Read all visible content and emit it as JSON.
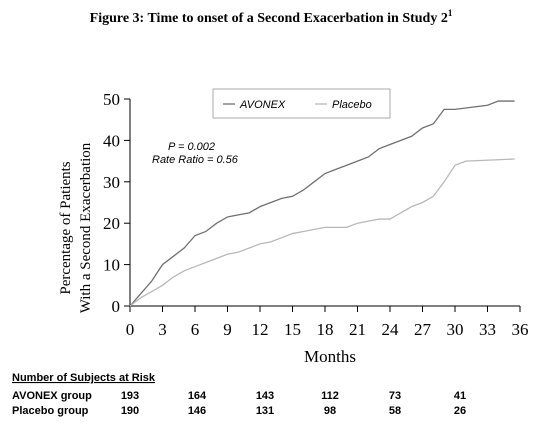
{
  "chart_data": {
    "type": "line",
    "title": "Figure 3: Time to onset of a Second Exacerbation in Study 2",
    "title_note": "1",
    "y_label": [
      "Percentage of Patients",
      "With a Second Exacerbation"
    ],
    "x_label": "Months",
    "annotations": [
      "P = 0.002",
      "Rate Ratio = 0.56"
    ],
    "xlim": [
      0,
      36
    ],
    "xticks": [
      0,
      3,
      6,
      9,
      12,
      15,
      18,
      21,
      24,
      27,
      30,
      33,
      36
    ],
    "ylim": [
      0,
      50
    ],
    "yticks": [
      0,
      10,
      20,
      30,
      40,
      50
    ],
    "grid": false,
    "legend": "top",
    "series": [
      {
        "name": "AVONEX",
        "color": "#707070",
        "x": [
          0,
          1,
          2,
          3,
          4,
          5,
          6,
          7,
          8,
          9,
          10,
          11,
          12,
          13,
          14,
          15,
          16,
          17,
          18,
          19,
          20,
          21,
          22,
          23,
          24,
          25,
          26,
          27,
          28,
          29,
          30,
          33,
          34,
          35.5
        ],
        "values": [
          0,
          3,
          6,
          10,
          12,
          14,
          17,
          18,
          20,
          21.5,
          22,
          22.5,
          24,
          25,
          26,
          26.5,
          28,
          30,
          32,
          33,
          34,
          35,
          36,
          38,
          39,
          40,
          41,
          43,
          44,
          47.5,
          47.5,
          48.5,
          49.5,
          49.5
        ]
      },
      {
        "name": "Placebo",
        "color": "#b8b8b8",
        "x": [
          0,
          1,
          2,
          3,
          4,
          5,
          6,
          7,
          8,
          9,
          10,
          11,
          12,
          13,
          14,
          15,
          16,
          17,
          18,
          19,
          20,
          21,
          22,
          23,
          24,
          25,
          26,
          27,
          28,
          29,
          30,
          31,
          35.5
        ],
        "values": [
          0,
          2,
          3.5,
          5,
          7,
          8.5,
          9.5,
          10.5,
          11.5,
          12.5,
          13,
          14,
          15,
          15.5,
          16.5,
          17.5,
          18,
          18.5,
          19,
          19,
          19,
          20,
          20.5,
          21,
          21,
          22.5,
          24,
          25,
          26.5,
          30,
          34,
          35,
          35.5
        ]
      }
    ]
  },
  "risk_table": {
    "title": "Number of Subjects at Risk",
    "rows": [
      {
        "label": "AVONEX group",
        "values": [
          "193",
          "164",
          "143",
          "112",
          "73",
          "41"
        ]
      },
      {
        "label": "Placebo group",
        "values": [
          "190",
          "146",
          "131",
          "98",
          "58",
          "26"
        ]
      }
    ]
  }
}
